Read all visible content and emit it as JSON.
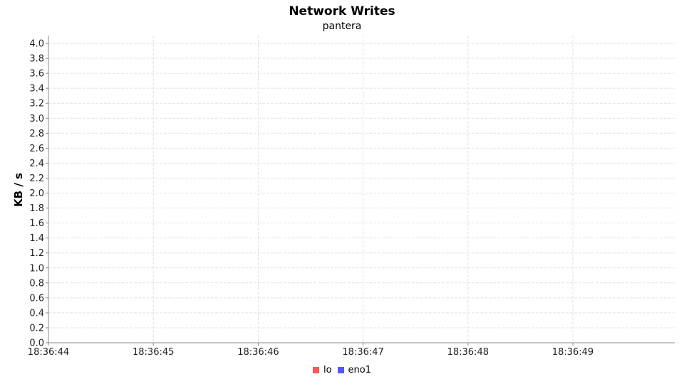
{
  "chart_data": {
    "type": "line",
    "title": "Network Writes",
    "subtitle": "pantera",
    "ylabel": "KB / s",
    "xlabel": "",
    "ylim": [
      0,
      4.0
    ],
    "y_ticks": [
      "0.0",
      "0.2",
      "0.4",
      "0.6",
      "0.8",
      "1.0",
      "1.2",
      "1.4",
      "1.6",
      "1.8",
      "2.0",
      "2.2",
      "2.4",
      "2.6",
      "2.8",
      "3.0",
      "3.2",
      "3.4",
      "3.6",
      "3.8",
      "4.0"
    ],
    "x_ticks": [
      "18:36:44",
      "18:36:45",
      "18:36:46",
      "18:36:47",
      "18:36:48",
      "18:36:49"
    ],
    "grid": true,
    "legend_position": "bottom",
    "series": [
      {
        "name": "lo",
        "color": "#ff5555",
        "values": []
      },
      {
        "name": "eno1",
        "color": "#5555ff",
        "values": []
      }
    ]
  }
}
